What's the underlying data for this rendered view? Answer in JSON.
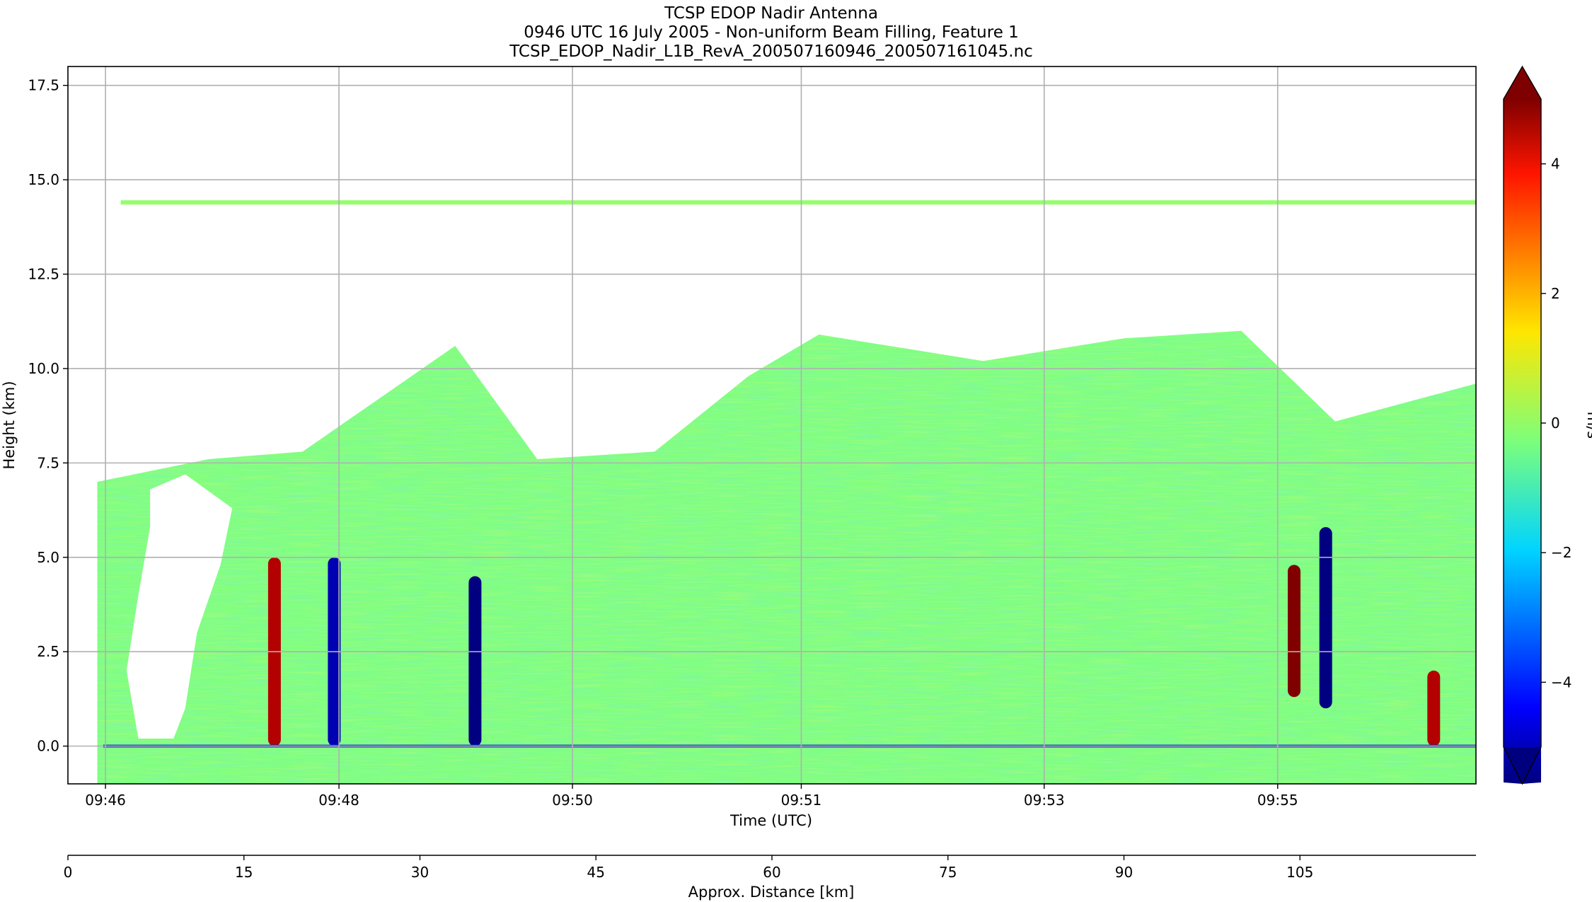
{
  "chart_data": {
    "type": "heatmap",
    "title_lines": [
      "TCSP EDOP Nadir Antenna",
      "0946 UTC 16 July 2005 - Non-uniform Beam Filling, Feature 1",
      "TCSP_EDOP_Nadir_L1B_RevA_200507160946_200507161045.nc"
    ],
    "ylabel": "Height (km)",
    "xlabel": "Time (UTC)",
    "x2label": "Approx. Distance [km]",
    "ylim": [
      -1.0,
      18.0
    ],
    "y_ticks": [
      0.0,
      2.5,
      5.0,
      7.5,
      10.0,
      12.5,
      15.0,
      17.5
    ],
    "y_tick_labels": [
      "0.0",
      "2.5",
      "5.0",
      "7.5",
      "10.0",
      "12.5",
      "15.0",
      "17.5"
    ],
    "x_tick_labels": [
      "09:46",
      "09:48",
      "09:50",
      "09:51",
      "09:53",
      "09:55"
    ],
    "x_tick_positions_km": [
      3.2,
      23.1,
      43.0,
      62.5,
      83.2,
      103.1
    ],
    "distance_range_km": [
      0,
      120
    ],
    "distance_ticks": [
      0,
      15,
      30,
      45,
      60,
      75,
      90,
      105
    ],
    "distance_tick_labels": [
      "0",
      "15",
      "30",
      "45",
      "60",
      "75",
      "90",
      "105"
    ],
    "colorbar": {
      "label": "m/s",
      "range": [
        -5,
        5
      ],
      "extend": "both",
      "colormap": "jet",
      "ticks": [
        -4,
        -2,
        0,
        2,
        4
      ],
      "tick_labels": [
        "−4",
        "−2",
        "0",
        "2",
        "4"
      ]
    },
    "features": {
      "surface_line_km": 0.0,
      "tropopause_echo_km": 14.4,
      "cloud_top_profile": [
        {
          "d_km": 2.5,
          "top_km": 7.0
        },
        {
          "d_km": 12.0,
          "top_km": 7.6
        },
        {
          "d_km": 20.0,
          "top_km": 7.8
        },
        {
          "d_km": 33.0,
          "top_km": 10.6
        },
        {
          "d_km": 40.0,
          "top_km": 7.6
        },
        {
          "d_km": 50.0,
          "top_km": 7.8
        },
        {
          "d_km": 58.0,
          "top_km": 9.8
        },
        {
          "d_km": 64.0,
          "top_km": 10.9
        },
        {
          "d_km": 78.0,
          "top_km": 10.2
        },
        {
          "d_km": 90.0,
          "top_km": 10.8
        },
        {
          "d_km": 100.0,
          "top_km": 11.0
        },
        {
          "d_km": 108.0,
          "top_km": 8.6
        },
        {
          "d_km": 120.0,
          "top_km": 9.6
        }
      ],
      "updraft_cores": [
        {
          "d_km": 17.6,
          "v_ms": 4.5,
          "base_km": 0.0,
          "top_km": 5.0
        },
        {
          "d_km": 104.5,
          "v_ms": 5.0,
          "base_km": 1.3,
          "top_km": 4.8
        },
        {
          "d_km": 116.4,
          "v_ms": 4.5,
          "base_km": 0.0,
          "top_km": 2.0
        }
      ],
      "downdraft_cores": [
        {
          "d_km": 22.7,
          "v_ms": -4.5,
          "base_km": 0.0,
          "top_km": 5.0
        },
        {
          "d_km": 34.7,
          "v_ms": -5.0,
          "base_km": 0.0,
          "top_km": 4.5
        },
        {
          "d_km": 107.2,
          "v_ms": -5.0,
          "base_km": 1.0,
          "top_km": 5.8
        }
      ]
    }
  }
}
